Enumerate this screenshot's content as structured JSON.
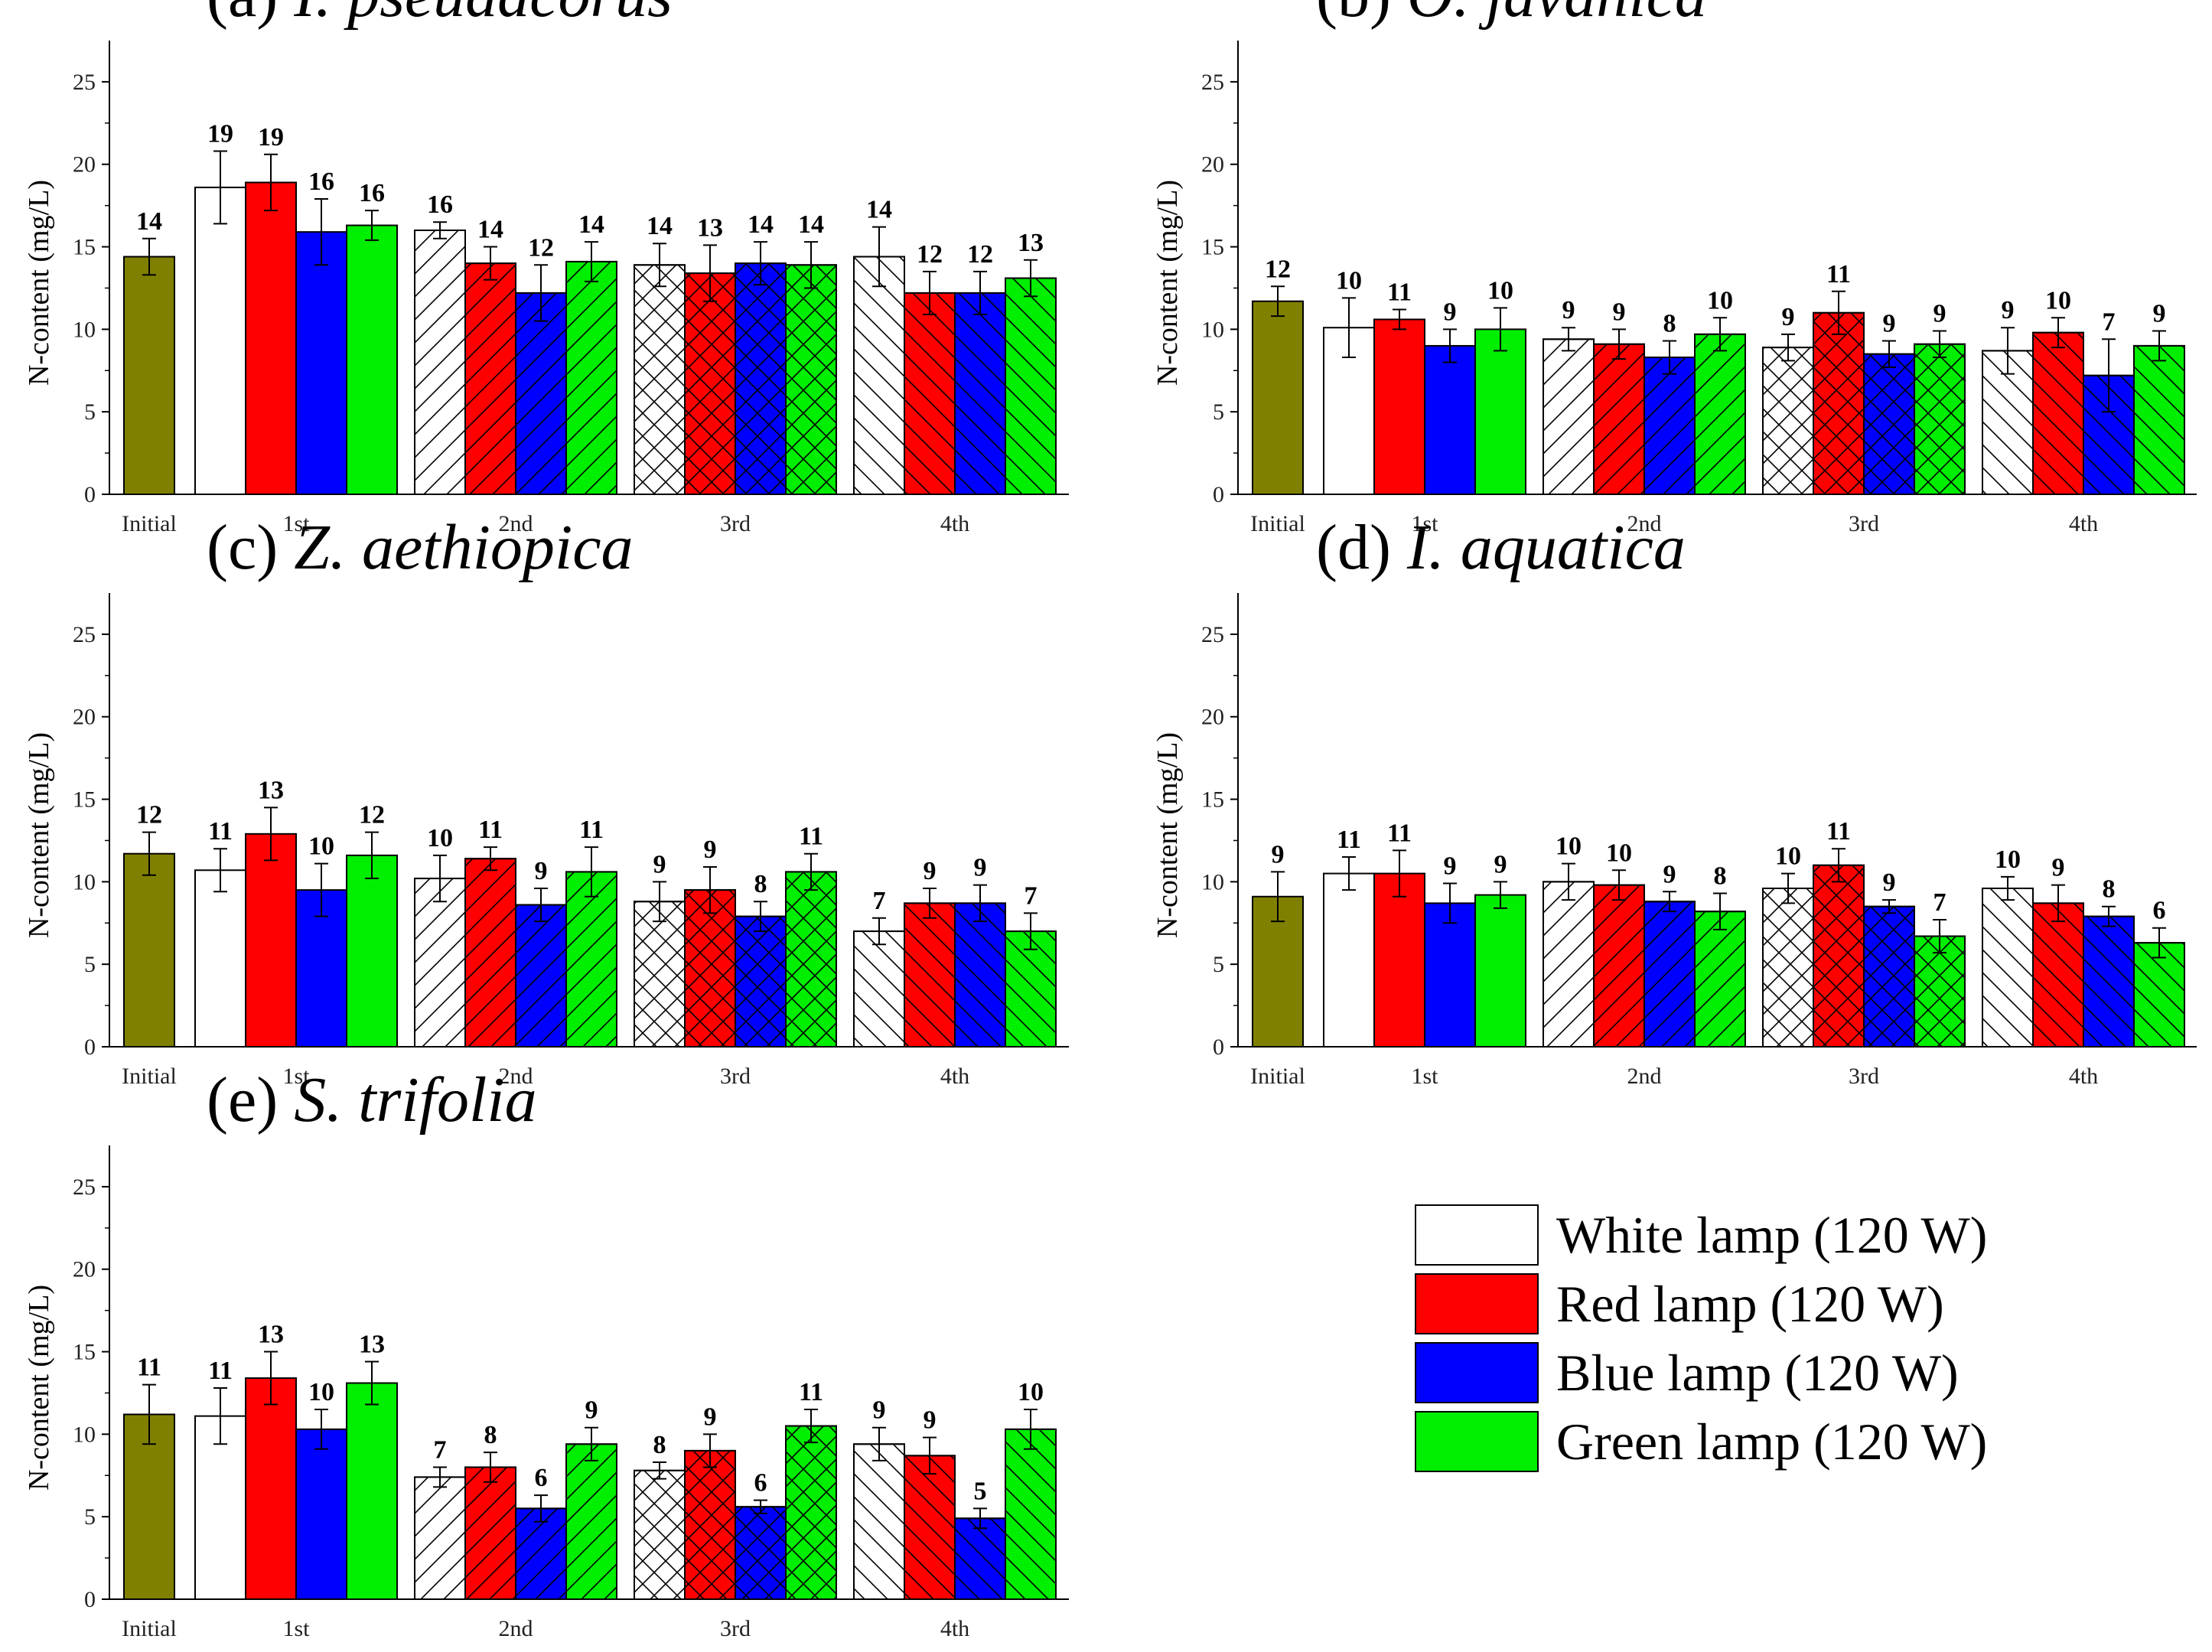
{
  "chart_data": {
    "type": "bar",
    "ylabel": "N-content (mg/L)",
    "ylim": [
      0,
      27.5
    ],
    "yticks": [
      0,
      5,
      10,
      15,
      20,
      25
    ],
    "groups": [
      "Initial",
      "1st",
      "2nd",
      "3rd",
      "4th"
    ],
    "group_patterns": {
      "Initial": "none",
      "1st": "none",
      "2nd": "forward-diagonal",
      "3rd": "crosshatch",
      "4th": "backward-diagonal"
    },
    "series": [
      {
        "name": "White lamp (120 W)",
        "color": "#ffffff"
      },
      {
        "name": "Red lamp (120 W)",
        "color": "#ff0000"
      },
      {
        "name": "Blue lamp (120 W)",
        "color": "#0000ff"
      },
      {
        "name": "Green lamp (120 W)",
        "color": "#00ee00"
      }
    ],
    "initial_color": "#808000",
    "panels": [
      {
        "letter": "(a) ",
        "species": "I. pseudacorus",
        "initial": {
          "value": 14.4,
          "err": 1.1,
          "label": "14"
        },
        "stages": [
          {
            "values": [
              18.6,
              18.9,
              15.9,
              16.3
            ],
            "errors": [
              2.2,
              1.7,
              2.0,
              0.9
            ],
            "labels": [
              "19",
              "19",
              "16",
              "16"
            ]
          },
          {
            "values": [
              16.0,
              14.0,
              12.2,
              14.1
            ],
            "errors": [
              0.5,
              1.0,
              1.7,
              1.2
            ],
            "labels": [
              "16",
              "14",
              "12",
              "14"
            ]
          },
          {
            "values": [
              13.9,
              13.4,
              14.0,
              13.9
            ],
            "errors": [
              1.3,
              1.7,
              1.3,
              1.4
            ],
            "labels": [
              "14",
              "13",
              "14",
              "14"
            ]
          },
          {
            "values": [
              14.4,
              12.2,
              12.2,
              13.1
            ],
            "errors": [
              1.8,
              1.3,
              1.3,
              1.1
            ],
            "labels": [
              "14",
              "12",
              "12",
              "13"
            ]
          }
        ]
      },
      {
        "letter": "(b) ",
        "species": "O. javanica",
        "initial": {
          "value": 11.7,
          "err": 0.9,
          "label": "12"
        },
        "stages": [
          {
            "values": [
              10.1,
              10.6,
              9.0,
              10.0
            ],
            "errors": [
              1.8,
              0.6,
              1.0,
              1.3
            ],
            "labels": [
              "10",
              "11",
              "9",
              "10"
            ]
          },
          {
            "values": [
              9.4,
              9.1,
              8.3,
              9.7
            ],
            "errors": [
              0.7,
              0.9,
              1.0,
              1.0
            ],
            "labels": [
              "9",
              "9",
              "8",
              "10"
            ]
          },
          {
            "values": [
              8.9,
              11.0,
              8.5,
              9.1
            ],
            "errors": [
              0.8,
              1.3,
              0.8,
              0.8
            ],
            "labels": [
              "9",
              "11",
              "9",
              "9"
            ]
          },
          {
            "values": [
              8.7,
              9.8,
              7.2,
              9.0
            ],
            "errors": [
              1.4,
              0.9,
              2.2,
              0.9
            ],
            "labels": [
              "9",
              "10",
              "7",
              "9"
            ]
          }
        ]
      },
      {
        "letter": "(c) ",
        "species": "Z. aethiopica",
        "initial": {
          "value": 11.7,
          "err": 1.3,
          "label": "12"
        },
        "stages": [
          {
            "values": [
              10.7,
              12.9,
              9.5,
              11.6
            ],
            "errors": [
              1.3,
              1.6,
              1.6,
              1.4
            ],
            "labels": [
              "11",
              "13",
              "10",
              "12"
            ]
          },
          {
            "values": [
              10.2,
              11.4,
              8.6,
              10.6
            ],
            "errors": [
              1.4,
              0.7,
              1.0,
              1.5
            ],
            "labels": [
              "10",
              "11",
              "9",
              "11"
            ]
          },
          {
            "values": [
              8.8,
              9.5,
              7.9,
              10.6
            ],
            "errors": [
              1.2,
              1.4,
              0.9,
              1.1
            ],
            "labels": [
              "9",
              "9",
              "8",
              "11"
            ]
          },
          {
            "values": [
              7.0,
              8.7,
              8.7,
              7.0
            ],
            "errors": [
              0.8,
              0.9,
              1.1,
              1.1
            ],
            "labels": [
              "7",
              "9",
              "9",
              "7"
            ]
          }
        ]
      },
      {
        "letter": "(d) ",
        "species": "I. aquatica",
        "initial": {
          "value": 9.1,
          "err": 1.5,
          "label": "9"
        },
        "stages": [
          {
            "values": [
              10.5,
              10.5,
              8.7,
              9.2
            ],
            "errors": [
              1.0,
              1.4,
              1.2,
              0.8
            ],
            "labels": [
              "11",
              "11",
              "9",
              "9"
            ]
          },
          {
            "values": [
              10.0,
              9.8,
              8.8,
              8.2
            ],
            "errors": [
              1.1,
              0.9,
              0.6,
              1.1
            ],
            "labels": [
              "10",
              "10",
              "9",
              "8"
            ]
          },
          {
            "values": [
              9.6,
              11.0,
              8.5,
              6.7
            ],
            "errors": [
              0.9,
              1.0,
              0.4,
              1.0
            ],
            "labels": [
              "10",
              "11",
              "9",
              "7"
            ]
          },
          {
            "values": [
              9.6,
              8.7,
              7.9,
              6.3
            ],
            "errors": [
              0.7,
              1.1,
              0.6,
              0.9
            ],
            "labels": [
              "10",
              "9",
              "8",
              "6"
            ]
          }
        ]
      },
      {
        "letter": "(e) ",
        "species": "S. trifolia",
        "initial": {
          "value": 11.2,
          "err": 1.8,
          "label": "11"
        },
        "stages": [
          {
            "values": [
              11.1,
              13.4,
              10.3,
              13.1
            ],
            "errors": [
              1.7,
              1.6,
              1.2,
              1.3
            ],
            "labels": [
              "11",
              "13",
              "10",
              "13"
            ]
          },
          {
            "values": [
              7.4,
              8.0,
              5.5,
              9.4
            ],
            "errors": [
              0.6,
              0.9,
              0.8,
              1.0
            ],
            "labels": [
              "7",
              "8",
              "6",
              "9"
            ]
          },
          {
            "values": [
              7.8,
              9.0,
              5.6,
              10.5
            ],
            "errors": [
              0.5,
              1.0,
              0.4,
              1.0
            ],
            "labels": [
              "8",
              "9",
              "6",
              "11"
            ]
          },
          {
            "values": [
              9.4,
              8.7,
              4.9,
              10.3
            ],
            "errors": [
              1.0,
              1.1,
              0.6,
              1.2
            ],
            "labels": [
              "9",
              "9",
              "5",
              "10"
            ]
          }
        ]
      }
    ]
  }
}
